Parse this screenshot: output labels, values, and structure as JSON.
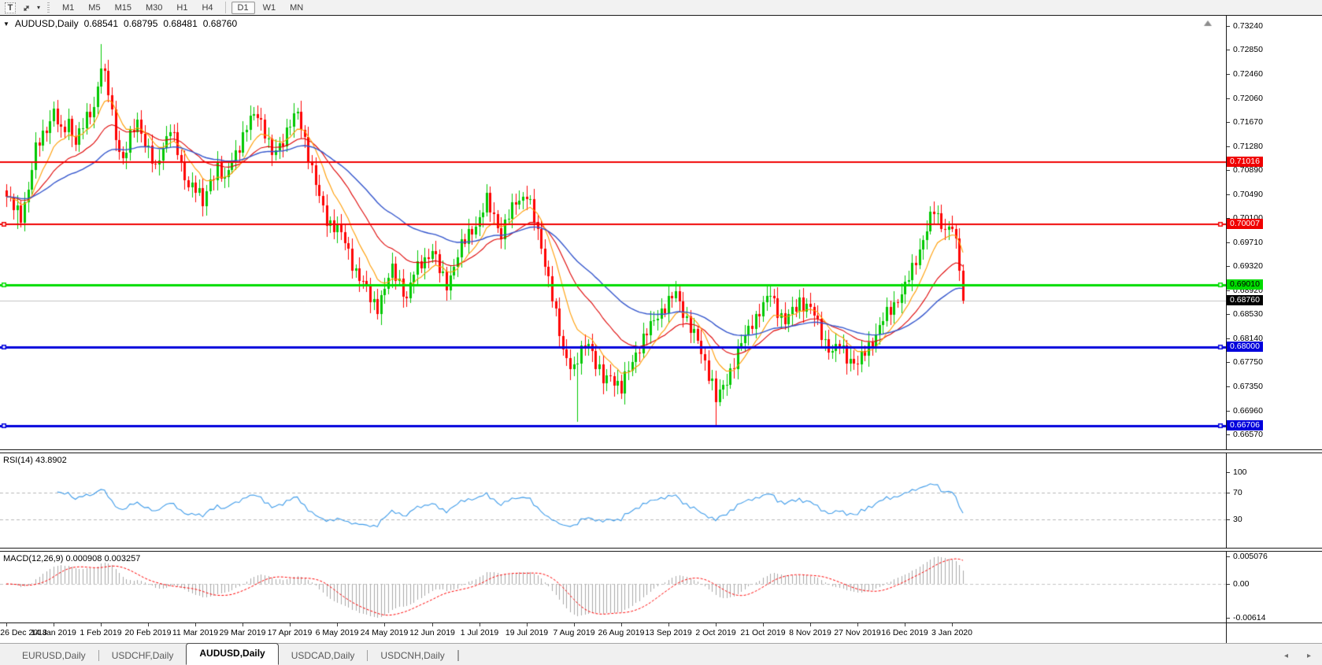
{
  "toolbar": {
    "text_tool_label": "T",
    "dropdown_icon": "▾",
    "timeframes": [
      {
        "label": "M1",
        "active": false
      },
      {
        "label": "M5",
        "active": false
      },
      {
        "label": "M15",
        "active": false
      },
      {
        "label": "M30",
        "active": false
      },
      {
        "label": "H1",
        "active": false
      },
      {
        "label": "H4",
        "active": false
      },
      {
        "label": "D1",
        "active": true
      },
      {
        "label": "W1",
        "active": false
      },
      {
        "label": "MN",
        "active": false
      }
    ],
    "group_break_after": "H4"
  },
  "chart": {
    "symbol_dropdown_icon": "▼",
    "symbol_label": "AUDUSD,Daily",
    "ohlc": {
      "open": "0.68541",
      "high": "0.68795",
      "low": "0.68481",
      "close": "0.68760"
    },
    "price_axis_ticks": [
      "0.73240",
      "0.72850",
      "0.72460",
      "0.72060",
      "0.71670",
      "0.71280",
      "0.70890",
      "0.70490",
      "0.70100",
      "0.69710",
      "0.69320",
      "0.68920",
      "0.68530",
      "0.68140",
      "0.67750",
      "0.67350",
      "0.66960",
      "0.66570"
    ],
    "levels": [
      {
        "value": 0.71016,
        "label": "0.71016",
        "color": "#F00000",
        "line_width": 2,
        "badge_bg": "#F00000",
        "badge_fg": "#FFFFFF",
        "handles": false
      },
      {
        "value": 0.70007,
        "label": "0.70007",
        "color": "#F00000",
        "line_width": 2,
        "badge_bg": "#F00000",
        "badge_fg": "#FFFFFF",
        "handles": true
      },
      {
        "value": 0.6901,
        "label": "0.69010",
        "color": "#00DC00",
        "line_width": 3,
        "badge_bg": "#00DC00",
        "badge_fg": "#000000",
        "handles": true
      },
      {
        "value": 0.68,
        "label": "0.68000",
        "color": "#0000DC",
        "line_width": 3,
        "badge_bg": "#0000DC",
        "badge_fg": "#FFFFFF",
        "handles": true
      },
      {
        "value": 0.66706,
        "label": "0.66706",
        "color": "#0000DC",
        "line_width": 3,
        "badge_bg": "#0000DC",
        "badge_fg": "#FFFFFF",
        "handles": true
      }
    ],
    "current_price": {
      "value": 0.6876,
      "label": "0.68760",
      "line_color": "#c3c3c3",
      "badge_bg": "#000000",
      "badge_fg": "#FFFFFF"
    },
    "colors": {
      "up": "#00C800",
      "down": "#FF0000",
      "ma_fast": "#FF9C00",
      "ma_mid": "#DE0000",
      "ma_slow": "#3355CC"
    },
    "scale": {
      "top_price": 0.73407,
      "bottom_price": 0.66326
    }
  },
  "rsi": {
    "label": "RSI(14)",
    "value": "43.8902",
    "axis_ticks": [
      {
        "label": "100",
        "value": 100
      },
      {
        "label": "70",
        "value": 70
      },
      {
        "label": "30",
        "value": 30
      }
    ],
    "guide_levels": [
      70,
      30
    ],
    "line_color": "#3E9BE9",
    "period": 14
  },
  "macd": {
    "label": "MACD(12,26,9)",
    "main_value": "0.000908",
    "signal_value": "0.003257",
    "axis_top": "0.005076",
    "axis_zero": "0.00",
    "axis_bottom": "-0.00614",
    "histogram_color": "#A9A9A9",
    "signal_color": "#FF0000",
    "fast": 12,
    "slow": 26,
    "signal_period": 9
  },
  "tabs": {
    "items": [
      {
        "label": "EURUSD,Daily",
        "active": false
      },
      {
        "label": "USDCHF,Daily",
        "active": false
      },
      {
        "label": "AUDUSD,Daily",
        "active": true
      },
      {
        "label": "USDCAD,Daily",
        "active": false
      },
      {
        "label": "USDCNH,Daily",
        "active": false
      }
    ],
    "scroll_left_icon": "◂",
    "scroll_right_icon": "▸"
  },
  "chart_data": {
    "type": "candlestick",
    "symbol": "AUDUSD",
    "timeframe": "Daily",
    "title_ohlc": {
      "open": 0.68541,
      "high": 0.68795,
      "low": 0.68481,
      "close": 0.6876
    },
    "ylim": [
      0.66326,
      0.73407
    ],
    "num_candles": 264,
    "x0": 8,
    "x_step": 4.62,
    "candle_width": 3,
    "date_labels": [
      "26 Dec 2018",
      "14 Jan 2019",
      "1 Feb 2019",
      "20 Feb 2019",
      "11 Mar 2019",
      "29 Mar 2019",
      "17 Apr 2019",
      "6 May 2019",
      "24 May 2019",
      "12 Jun 2019",
      "1 Jul 2019",
      "19 Jul 2019",
      "7 Aug 2019",
      "26 Aug 2019",
      "13 Sep 2019",
      "2 Oct 2019",
      "21 Oct 2019",
      "8 Nov 2019",
      "27 Nov 2019",
      "16 Dec 2019",
      "3 Jan 2020"
    ],
    "candles_per_date_label": 13,
    "horizontal_levels": [
      0.71016,
      0.70007,
      0.6901,
      0.68,
      0.66706
    ],
    "moving_average_periods": {
      "fast": 10,
      "mid": 25,
      "slow": 52
    },
    "price_anchors": [
      [
        0,
        0.7045
      ],
      [
        2,
        0.7025
      ],
      [
        4,
        0.7015
      ],
      [
        6,
        0.706
      ],
      [
        8,
        0.712
      ],
      [
        11,
        0.716
      ],
      [
        13,
        0.7185
      ],
      [
        15,
        0.7145
      ],
      [
        17,
        0.717
      ],
      [
        19,
        0.7135
      ],
      [
        21,
        0.716
      ],
      [
        24,
        0.7195
      ],
      [
        26,
        0.726
      ],
      [
        28,
        0.7215
      ],
      [
        30,
        0.7145
      ],
      [
        32,
        0.7105
      ],
      [
        34,
        0.714
      ],
      [
        36,
        0.717
      ],
      [
        38,
        0.7135
      ],
      [
        39,
        0.712
      ],
      [
        41,
        0.7085
      ],
      [
        43,
        0.713
      ],
      [
        45,
        0.716
      ],
      [
        47,
        0.7115
      ],
      [
        49,
        0.7075
      ],
      [
        52,
        0.706
      ],
      [
        54,
        0.703
      ],
      [
        56,
        0.7075
      ],
      [
        58,
        0.7095
      ],
      [
        60,
        0.7065
      ],
      [
        62,
        0.711
      ],
      [
        65,
        0.714
      ],
      [
        67,
        0.717
      ],
      [
        69,
        0.7185
      ],
      [
        71,
        0.715
      ],
      [
        73,
        0.711
      ],
      [
        75,
        0.713
      ],
      [
        78,
        0.7165
      ],
      [
        80,
        0.7178
      ],
      [
        82,
        0.714
      ],
      [
        84,
        0.709
      ],
      [
        86,
        0.704
      ],
      [
        88,
        0.7008
      ],
      [
        91,
        0.6995
      ],
      [
        93,
        0.6968
      ],
      [
        95,
        0.6938
      ],
      [
        98,
        0.6902
      ],
      [
        100,
        0.6878
      ],
      [
        102,
        0.6868
      ],
      [
        104,
        0.6895
      ],
      [
        106,
        0.6925
      ],
      [
        108,
        0.6908
      ],
      [
        110,
        0.6878
      ],
      [
        112,
        0.6918
      ],
      [
        114,
        0.694
      ],
      [
        117,
        0.6955
      ],
      [
        119,
        0.6925
      ],
      [
        121,
        0.6905
      ],
      [
        123,
        0.693
      ],
      [
        125,
        0.6962
      ],
      [
        127,
        0.6988
      ],
      [
        130,
        0.7005
      ],
      [
        132,
        0.7038
      ],
      [
        134,
        0.7018
      ],
      [
        136,
        0.698
      ],
      [
        138,
        0.7012
      ],
      [
        140,
        0.7042
      ],
      [
        143,
        0.7045
      ],
      [
        145,
        0.7008
      ],
      [
        147,
        0.6968
      ],
      [
        149,
        0.6908
      ],
      [
        151,
        0.6848
      ],
      [
        153,
        0.6798
      ],
      [
        156,
        0.676
      ],
      [
        158,
        0.6792
      ],
      [
        160,
        0.6812
      ],
      [
        162,
        0.6772
      ],
      [
        164,
        0.6742
      ],
      [
        166,
        0.6756
      ],
      [
        169,
        0.673
      ],
      [
        171,
        0.6762
      ],
      [
        173,
        0.6792
      ],
      [
        175,
        0.6812
      ],
      [
        177,
        0.6832
      ],
      [
        179,
        0.6855
      ],
      [
        182,
        0.6872
      ],
      [
        184,
        0.6886
      ],
      [
        186,
        0.686
      ],
      [
        188,
        0.683
      ],
      [
        190,
        0.6806
      ],
      [
        192,
        0.6776
      ],
      [
        194,
        0.6742
      ],
      [
        195,
        0.6712
      ],
      [
        197,
        0.6732
      ],
      [
        199,
        0.6762
      ],
      [
        201,
        0.6792
      ],
      [
        203,
        0.6816
      ],
      [
        205,
        0.6842
      ],
      [
        208,
        0.6866
      ],
      [
        210,
        0.6886
      ],
      [
        212,
        0.6862
      ],
      [
        214,
        0.684
      ],
      [
        216,
        0.6856
      ],
      [
        218,
        0.6876
      ],
      [
        221,
        0.6862
      ],
      [
        223,
        0.6836
      ],
      [
        225,
        0.681
      ],
      [
        227,
        0.679
      ],
      [
        229,
        0.6802
      ],
      [
        231,
        0.6786
      ],
      [
        234,
        0.677
      ],
      [
        236,
        0.6792
      ],
      [
        238,
        0.6812
      ],
      [
        240,
        0.6832
      ],
      [
        242,
        0.6852
      ],
      [
        244,
        0.6872
      ],
      [
        247,
        0.6896
      ],
      [
        249,
        0.6926
      ],
      [
        251,
        0.6962
      ],
      [
        253,
        0.6992
      ],
      [
        255,
        0.7022
      ],
      [
        257,
        0.7002
      ],
      [
        259,
        0.6992
      ],
      [
        260,
        0.6996
      ],
      [
        261,
        0.6962
      ],
      [
        262,
        0.693
      ],
      [
        263,
        0.6876
      ]
    ],
    "overrides": [
      {
        "i": 3,
        "low": 0.6993
      },
      {
        "i": 26,
        "high": 0.7295
      },
      {
        "i": 157,
        "low": 0.6677
      },
      {
        "i": 195,
        "low": 0.6672
      }
    ]
  }
}
